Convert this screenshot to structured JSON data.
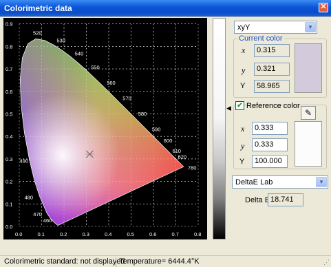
{
  "window": {
    "title": "Colorimetric data",
    "close_glyph": "✕"
  },
  "chromaticity": {
    "y_ticks": [
      "0.9",
      "0.8",
      "0.7",
      "0.6",
      "0.5",
      "0.4",
      "0.3",
      "0.2",
      "0.1",
      "0.0"
    ],
    "x_ticks": [
      "0.0",
      "0.1",
      "0.2",
      "0.3",
      "0.4",
      "0.5",
      "0.6",
      "0.7",
      "0.8"
    ],
    "wavelength_labels": [
      {
        "nm": "520",
        "x": 0.074,
        "y": 0.834
      },
      {
        "nm": "530",
        "x": 0.155,
        "y": 0.806
      },
      {
        "nm": "540",
        "x": 0.23,
        "y": 0.754
      },
      {
        "nm": "550",
        "x": 0.302,
        "y": 0.692
      },
      {
        "nm": "560",
        "x": 0.373,
        "y": 0.624
      },
      {
        "nm": "570",
        "x": 0.444,
        "y": 0.555
      },
      {
        "nm": "580",
        "x": 0.513,
        "y": 0.487
      },
      {
        "nm": "590",
        "x": 0.575,
        "y": 0.424
      },
      {
        "nm": "600",
        "x": 0.627,
        "y": 0.373
      },
      {
        "nm": "610",
        "x": 0.666,
        "y": 0.334
      },
      {
        "nm": "620",
        "x": 0.691,
        "y": 0.308
      },
      {
        "nm": "780",
        "x": 0.735,
        "y": 0.265
      },
      {
        "nm": "490",
        "x": 0.045,
        "y": 0.295
      },
      {
        "nm": "480",
        "x": 0.091,
        "y": 0.133
      },
      {
        "nm": "470",
        "x": 0.124,
        "y": 0.058
      },
      {
        "nm": "460",
        "x": 0.144,
        "y": 0.03
      }
    ],
    "current_point": {
      "x": 0.315,
      "y": 0.321
    }
  },
  "panel": {
    "space_select": "xyY",
    "current_group_label": "Current color",
    "current": {
      "x_label": "x",
      "y_label": "y",
      "Y_label": "Y",
      "x": "0.315",
      "y": "0.321",
      "Y": "58.965",
      "swatch_color": "#d3cbdb"
    },
    "reference_checkbox_label": "Reference color",
    "reference_checked": true,
    "check_glyph": "✔",
    "picker_glyph": "✎",
    "reference": {
      "x_label": "x",
      "y_label": "y",
      "Y_label": "Y",
      "x": "0.333",
      "y": "0.333",
      "Y": "100.000",
      "swatch_color": "#fcfcfc"
    },
    "delta_select": "DeltaE Lab",
    "delta_label": "Delta E",
    "delta_value": "18.741",
    "pointer_glyph": "◀",
    "dropdown_glyph": "▾"
  },
  "status": {
    "standard": "Colorimetric standard: not displayed",
    "temperature": "Temperature= 6444.4°K",
    "grip_glyph": "⋰"
  }
}
